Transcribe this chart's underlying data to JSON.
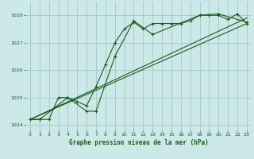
{
  "background_color": "#cce8e8",
  "grid_color": "#aacccc",
  "line_color": "#1a5c1a",
  "title": "Graphe pression niveau de la mer (hPa)",
  "xlim": [
    -0.5,
    23.5
  ],
  "ylim": [
    1023.8,
    1028.5
  ],
  "yticks": [
    1024,
    1025,
    1026,
    1027,
    1028
  ],
  "xticks": [
    0,
    1,
    2,
    3,
    4,
    5,
    6,
    7,
    8,
    9,
    10,
    11,
    12,
    13,
    14,
    15,
    16,
    17,
    18,
    19,
    20,
    21,
    22,
    23
  ],
  "series1": [
    1024.2,
    1024.2,
    1024.2,
    1025.0,
    1025.0,
    1024.85,
    1024.7,
    1025.4,
    1026.2,
    1027.0,
    1027.5,
    1027.75,
    1027.5,
    1027.7,
    1027.7,
    1027.7,
    1027.7,
    1027.8,
    1028.0,
    1028.0,
    1028.0,
    1027.85,
    1028.05,
    1027.7
  ],
  "series2_x": [
    0,
    1,
    4,
    6,
    7,
    9,
    11,
    13,
    18,
    20,
    23
  ],
  "series2_y": [
    1024.2,
    1024.2,
    1025.0,
    1024.5,
    1024.5,
    1026.5,
    1027.8,
    1027.3,
    1028.0,
    1028.05,
    1027.75
  ],
  "series3_x": [
    0,
    23
  ],
  "series3_y": [
    1024.2,
    1027.7
  ],
  "series4_x": [
    0,
    23
  ],
  "series4_y": [
    1024.2,
    1027.9
  ]
}
